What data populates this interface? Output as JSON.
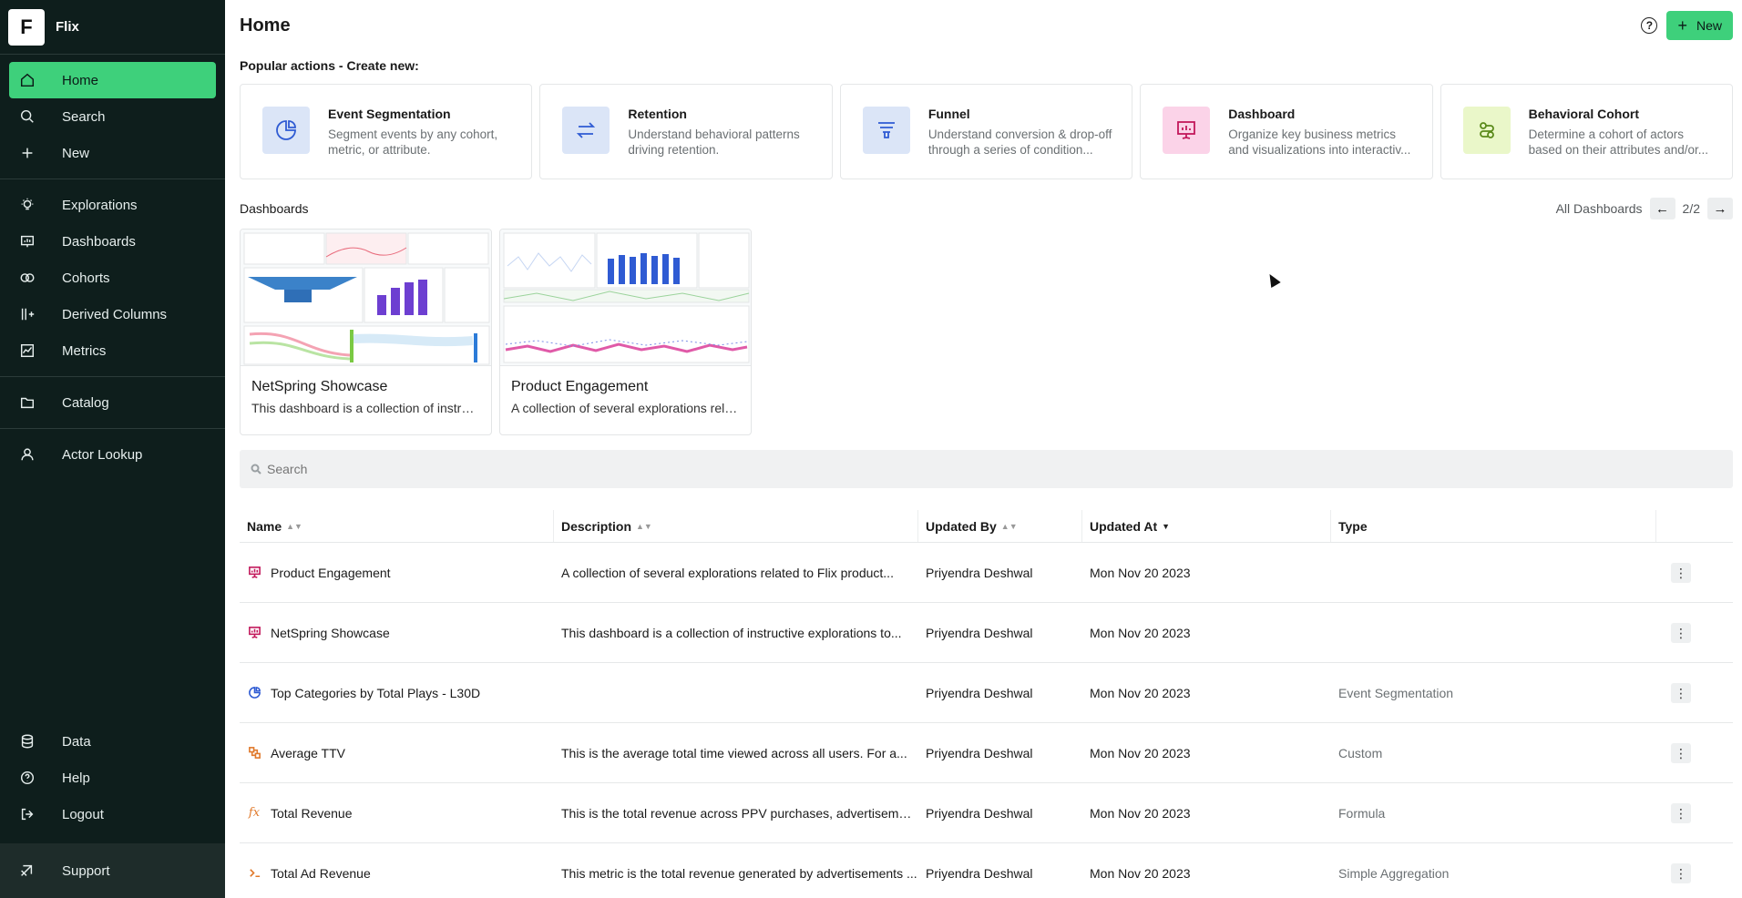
{
  "sidebar": {
    "brand_letter": "F",
    "brand_name": "Flix",
    "nav_primary": [
      {
        "label": "Home",
        "icon": "home-icon",
        "active": true
      },
      {
        "label": "Search",
        "icon": "search-icon"
      },
      {
        "label": "New",
        "icon": "plus-icon"
      }
    ],
    "nav_secondary": [
      {
        "label": "Explorations",
        "icon": "lightbulb-icon"
      },
      {
        "label": "Dashboards",
        "icon": "dashboard-icon"
      },
      {
        "label": "Cohorts",
        "icon": "cohort-icon"
      },
      {
        "label": "Derived Columns",
        "icon": "derived-columns-icon"
      },
      {
        "label": "Metrics",
        "icon": "metrics-icon"
      }
    ],
    "nav_catalog": [
      {
        "label": "Catalog",
        "icon": "folder-icon"
      }
    ],
    "nav_actor": [
      {
        "label": "Actor Lookup",
        "icon": "user-icon"
      }
    ],
    "nav_bottom": [
      {
        "label": "Data",
        "icon": "database-icon"
      },
      {
        "label": "Help",
        "icon": "help-icon"
      },
      {
        "label": "Logout",
        "icon": "logout-icon"
      }
    ],
    "support_label": "Support"
  },
  "header": {
    "title": "Home",
    "help_glyph": "?",
    "new_label": "New"
  },
  "popular": {
    "label": "Popular actions - Create new:",
    "cards": [
      {
        "title": "Event Segmentation",
        "desc": "Segment events by any cohort, metric, or attribute.",
        "icon": "event-segmentation-icon",
        "bg": "#dbe5f7",
        "stroke": "#2f5bd3"
      },
      {
        "title": "Retention",
        "desc": "Understand behavioral patterns driving retention.",
        "icon": "retention-icon",
        "bg": "#dbe5f7",
        "stroke": "#2f5bd3"
      },
      {
        "title": "Funnel",
        "desc": "Understand conversion & drop-off through a series of condition...",
        "icon": "funnel-icon",
        "bg": "#dbe5f7",
        "stroke": "#2f5bd3"
      },
      {
        "title": "Dashboard",
        "desc": "Organize key business metrics and visualizations into interactiv...",
        "icon": "dashboard-presentation-icon",
        "bg": "#fbd3e8",
        "stroke": "#c2185b"
      },
      {
        "title": "Behavioral Cohort",
        "desc": "Determine a cohort of actors based on their attributes and/or...",
        "icon": "behavioral-cohort-icon",
        "bg": "#eaf7c9",
        "stroke": "#5a8a1a"
      }
    ]
  },
  "dashboards": {
    "label": "Dashboards",
    "all_label": "All Dashboards",
    "page": "2/2",
    "cards": [
      {
        "title": "NetSpring Showcase",
        "desc": "This dashboard is a collection of instructive explorations"
      },
      {
        "title": "Product Engagement",
        "desc": "A collection of several explorations related to Flix product"
      }
    ]
  },
  "search": {
    "placeholder": "Search"
  },
  "table": {
    "headers": {
      "name": "Name",
      "description": "Description",
      "updated_by": "Updated By",
      "updated_at": "Updated At",
      "type": "Type"
    },
    "rows": [
      {
        "name": "Product Engagement",
        "description": "A collection of several explorations related to Flix product...",
        "updated_by": "Priyendra Deshwal",
        "updated_at": "Mon Nov 20 2023",
        "type": "",
        "icon": "dashboard-presentation-icon"
      },
      {
        "name": "NetSpring Showcase",
        "description": "This dashboard is a collection of instructive explorations to...",
        "updated_by": "Priyendra Deshwal",
        "updated_at": "Mon Nov 20 2023",
        "type": "",
        "icon": "dashboard-presentation-icon"
      },
      {
        "name": "Top Categories by Total Plays - L30D",
        "description": "",
        "updated_by": "Priyendra Deshwal",
        "updated_at": "Mon Nov 20 2023",
        "type": "Event Segmentation",
        "icon": "event-segmentation-icon"
      },
      {
        "name": "Average TTV",
        "description": "This is the average total time viewed across all users. For a...",
        "updated_by": "Priyendra Deshwal",
        "updated_at": "Mon Nov 20 2023",
        "type": "Custom",
        "icon": "custom-metric-icon"
      },
      {
        "name": "Total Revenue",
        "description": "This is the total revenue across PPV purchases, advertisement...",
        "updated_by": "Priyendra Deshwal",
        "updated_at": "Mon Nov 20 2023",
        "type": "Formula",
        "icon": "formula-icon"
      },
      {
        "name": "Total Ad Revenue",
        "description": "This metric is the total revenue generated by advertisements ...",
        "updated_by": "Priyendra Deshwal",
        "updated_at": "Mon Nov 20 2023",
        "type": "Simple Aggregation",
        "icon": "aggregation-icon"
      }
    ]
  },
  "colors": {
    "accent": "#3ed07b",
    "sidebar_bg": "#0e1e1c"
  }
}
